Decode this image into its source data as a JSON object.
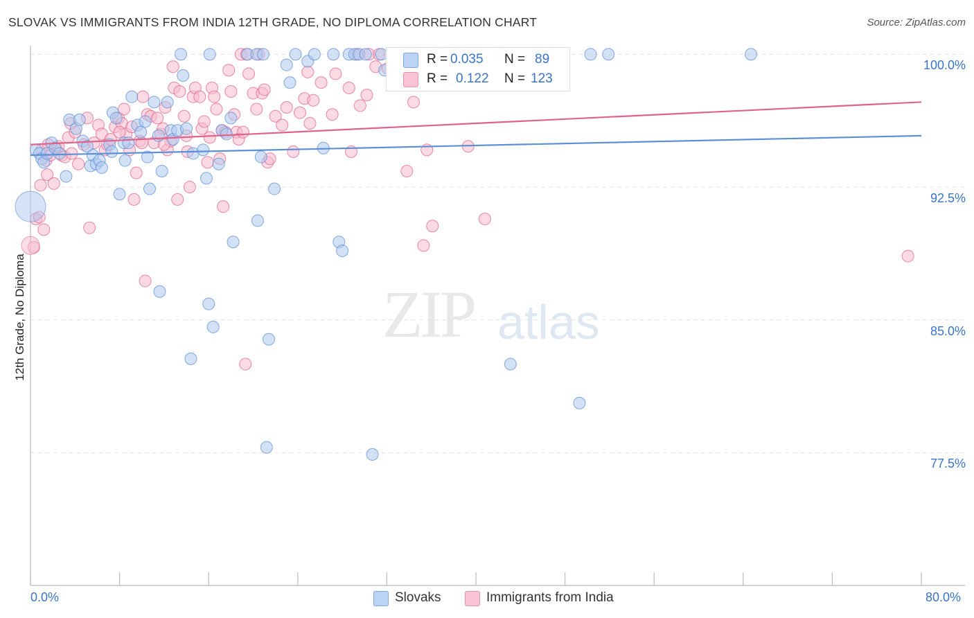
{
  "header": {
    "title": "SLOVAK VS IMMIGRANTS FROM INDIA 12TH GRADE, NO DIPLOMA CORRELATION CHART",
    "source": "Source: ZipAtlas.com"
  },
  "watermark": {
    "zip": "ZIP",
    "atlas": "atlas"
  },
  "legend": {
    "rows": [
      {
        "r_label": "R =",
        "r_value": "0.035",
        "n_label": "N =",
        "n_value": "89",
        "color": "#9fbfea"
      },
      {
        "r_label": "R =",
        "r_value": "0.122",
        "n_label": "N =",
        "n_value": "123",
        "color": "#f4a9c0"
      }
    ]
  },
  "bottom_legend": [
    {
      "label": "Slovaks",
      "color": "#aec8ee"
    },
    {
      "label": "Immigrants from India",
      "color": "#f7bccd"
    }
  ],
  "chart_data": {
    "type": "scatter",
    "title": "SLOVAK VS IMMIGRANTS FROM INDIA 12TH GRADE, NO DIPLOMA CORRELATION CHART",
    "xlabel": "",
    "ylabel": "12th Grade, No Diploma",
    "xlim": [
      0,
      80
    ],
    "ylim": [
      70,
      100.6
    ],
    "x_tick_labels": [
      "0.0%",
      "80.0%"
    ],
    "y_ticks": [
      100,
      92.5,
      85,
      77.5
    ],
    "y_tick_labels": [
      "100.0%",
      "92.5%",
      "85.0%",
      "77.5%"
    ],
    "grid": true,
    "series": [
      {
        "name": "Slovaks",
        "color": "#5b8fd6",
        "fill": "#aec8ee",
        "r": 0.035,
        "n": 89,
        "trend": [
          [
            0,
            94.3
          ],
          [
            80,
            95.4
          ]
        ],
        "points": [
          [
            0.5,
            94.6
          ],
          [
            0.8,
            94.4
          ],
          [
            1.0,
            94.1
          ],
          [
            1.2,
            93.9
          ],
          [
            1.5,
            94.4
          ],
          [
            1.9,
            95.0
          ],
          [
            2.2,
            94.7
          ],
          [
            2.6,
            94.4
          ],
          [
            3.2,
            93.1
          ],
          [
            3.5,
            96.3
          ],
          [
            4.1,
            95.8
          ],
          [
            4.4,
            96.3
          ],
          [
            4.7,
            95.1
          ],
          [
            5.1,
            94.8
          ],
          [
            5.4,
            93.7
          ],
          [
            5.6,
            94.3
          ],
          [
            5.9,
            93.8
          ],
          [
            6.2,
            94.0
          ],
          [
            6.4,
            93.6
          ],
          [
            7.1,
            94.9
          ],
          [
            7.3,
            94.5
          ],
          [
            7.4,
            96.7
          ],
          [
            7.7,
            96.4
          ],
          [
            8.0,
            92.1
          ],
          [
            8.4,
            95.0
          ],
          [
            8.5,
            94.0
          ],
          [
            8.8,
            95.0
          ],
          [
            9.1,
            97.6
          ],
          [
            9.6,
            96.0
          ],
          [
            9.9,
            95.6
          ],
          [
            10.3,
            96.2
          ],
          [
            10.5,
            94.2
          ],
          [
            10.7,
            92.4
          ],
          [
            11.1,
            97.3
          ],
          [
            11.5,
            95.4
          ],
          [
            11.8,
            93.4
          ],
          [
            12.3,
            97.3
          ],
          [
            12.6,
            95.7
          ],
          [
            12.8,
            95.2
          ],
          [
            13.2,
            95.7
          ],
          [
            13.5,
            100.0
          ],
          [
            13.7,
            98.8
          ],
          [
            14.0,
            95.8
          ],
          [
            14.6,
            94.4
          ],
          [
            15.5,
            94.6
          ],
          [
            15.8,
            93.0
          ],
          [
            16.1,
            100.0
          ],
          [
            16.4,
            84.6
          ],
          [
            16.9,
            93.8
          ],
          [
            17.2,
            95.7
          ],
          [
            17.6,
            95.5
          ],
          [
            18.0,
            96.4
          ],
          [
            18.2,
            89.4
          ],
          [
            19.5,
            100.0
          ],
          [
            20.3,
            100.0
          ],
          [
            20.7,
            94.2
          ],
          [
            20.4,
            90.6
          ],
          [
            20.9,
            100.0
          ],
          [
            21.2,
            77.8
          ],
          [
            21.4,
            83.9
          ],
          [
            21.9,
            92.4
          ],
          [
            23.0,
            99.4
          ],
          [
            23.3,
            98.4
          ],
          [
            23.8,
            100.0
          ],
          [
            24.9,
            99.6
          ],
          [
            25.5,
            100.0
          ],
          [
            26.3,
            94.7
          ],
          [
            27.2,
            100.0
          ],
          [
            27.7,
            89.4
          ],
          [
            28.0,
            88.9
          ],
          [
            28.6,
            100.0
          ],
          [
            29.1,
            100.0
          ],
          [
            29.5,
            100.0
          ],
          [
            30.1,
            100.0
          ],
          [
            30.7,
            77.4
          ],
          [
            31.5,
            100.0
          ],
          [
            31.8,
            99.1
          ],
          [
            33.8,
            100.0
          ],
          [
            37.8,
            98.6
          ],
          [
            38.3,
            100.0
          ],
          [
            38.5,
            100.0
          ],
          [
            42.3,
            100.0
          ],
          [
            43.1,
            82.5
          ],
          [
            49.3,
            80.3
          ],
          [
            50.3,
            100.0
          ],
          [
            51.9,
            100.0
          ],
          [
            64.7,
            100.0
          ],
          [
            16.0,
            85.9
          ],
          [
            14.4,
            82.8
          ],
          [
            11.6,
            86.6
          ]
        ],
        "big_point": [
          0,
          91.4
        ]
      },
      {
        "name": "Immigrants from India",
        "color": "#e0628b",
        "fill": "#f7bccd",
        "r": 0.122,
        "n": 123,
        "trend": [
          [
            0,
            94.9
          ],
          [
            80,
            97.3
          ]
        ],
        "points": [
          [
            0.3,
            89.1
          ],
          [
            0.5,
            90.7
          ],
          [
            0.9,
            92.6
          ],
          [
            1.0,
            94.6
          ],
          [
            1.2,
            90.1
          ],
          [
            1.4,
            94.0
          ],
          [
            1.5,
            93.2
          ],
          [
            1.8,
            94.3
          ],
          [
            2.1,
            92.7
          ],
          [
            2.3,
            94.7
          ],
          [
            2.8,
            94.3
          ],
          [
            3.1,
            94.2
          ],
          [
            3.4,
            95.3
          ],
          [
            3.7,
            94.4
          ],
          [
            4.0,
            95.6
          ],
          [
            4.3,
            93.8
          ],
          [
            4.8,
            94.9
          ],
          [
            5.1,
            96.4
          ],
          [
            5.3,
            90.2
          ],
          [
            5.7,
            95.0
          ],
          [
            6.1,
            96.0
          ],
          [
            6.4,
            95.5
          ],
          [
            6.7,
            94.6
          ],
          [
            6.9,
            94.9
          ],
          [
            7.2,
            95.2
          ],
          [
            7.6,
            95.9
          ],
          [
            7.9,
            96.4
          ],
          [
            8.2,
            96.1
          ],
          [
            8.4,
            96.9
          ],
          [
            8.6,
            95.5
          ],
          [
            8.9,
            94.6
          ],
          [
            9.1,
            95.9
          ],
          [
            9.3,
            91.8
          ],
          [
            9.5,
            93.3
          ],
          [
            9.8,
            95.1
          ],
          [
            10.0,
            95.0
          ],
          [
            10.1,
            97.6
          ],
          [
            10.3,
            87.2
          ],
          [
            10.5,
            96.6
          ],
          [
            10.8,
            96.5
          ],
          [
            11.1,
            95.0
          ],
          [
            11.4,
            96.4
          ],
          [
            11.7,
            95.5
          ],
          [
            11.9,
            95.8
          ],
          [
            12.1,
            97.0
          ],
          [
            12.3,
            94.6
          ],
          [
            12.6,
            95.1
          ],
          [
            12.8,
            99.3
          ],
          [
            12.9,
            98.1
          ],
          [
            13.2,
            91.8
          ],
          [
            13.4,
            97.9
          ],
          [
            13.8,
            96.5
          ],
          [
            14.0,
            95.4
          ],
          [
            14.1,
            94.5
          ],
          [
            14.3,
            92.5
          ],
          [
            14.6,
            97.6
          ],
          [
            14.8,
            98.1
          ],
          [
            15.2,
            97.6
          ],
          [
            15.4,
            95.8
          ],
          [
            15.6,
            96.2
          ],
          [
            15.9,
            93.9
          ],
          [
            16.1,
            95.3
          ],
          [
            16.3,
            98.1
          ],
          [
            16.5,
            97.6
          ],
          [
            16.7,
            96.9
          ],
          [
            17.0,
            94.1
          ],
          [
            17.2,
            95.7
          ],
          [
            17.3,
            91.4
          ],
          [
            17.5,
            95.6
          ],
          [
            17.8,
            99.1
          ],
          [
            18.0,
            97.9
          ],
          [
            18.3,
            96.6
          ],
          [
            18.5,
            95.6
          ],
          [
            18.7,
            95.2
          ],
          [
            18.9,
            100.0
          ],
          [
            19.1,
            95.6
          ],
          [
            19.3,
            82.5
          ],
          [
            19.4,
            100.0
          ],
          [
            19.6,
            98.9
          ],
          [
            20.0,
            97.8
          ],
          [
            20.3,
            96.9
          ],
          [
            20.5,
            100.0
          ],
          [
            20.8,
            97.8
          ],
          [
            21.0,
            98.0
          ],
          [
            21.3,
            93.9
          ],
          [
            21.5,
            94.1
          ],
          [
            22.0,
            96.5
          ],
          [
            22.6,
            96.0
          ],
          [
            23.0,
            97.0
          ],
          [
            23.6,
            94.5
          ],
          [
            24.2,
            96.7
          ],
          [
            24.6,
            97.5
          ],
          [
            24.9,
            99.0
          ],
          [
            25.1,
            96.1
          ],
          [
            25.4,
            97.4
          ],
          [
            26.1,
            98.4
          ],
          [
            27.1,
            96.6
          ],
          [
            27.4,
            98.9
          ],
          [
            28.6,
            98.1
          ],
          [
            28.8,
            94.5
          ],
          [
            29.3,
            100.0
          ],
          [
            29.6,
            97.1
          ],
          [
            30.2,
            97.7
          ],
          [
            30.4,
            100.0
          ],
          [
            31.0,
            99.3
          ],
          [
            31.3,
            100.0
          ],
          [
            32.1,
            99.2
          ],
          [
            33.8,
            93.4
          ],
          [
            34.4,
            97.3
          ],
          [
            35.3,
            89.2
          ],
          [
            35.6,
            94.6
          ],
          [
            36.1,
            90.3
          ],
          [
            36.8,
            100.0
          ],
          [
            39.3,
            94.8
          ],
          [
            40.8,
            90.7
          ],
          [
            78.8,
            88.6
          ],
          [
            1.6,
            94.9
          ],
          [
            2.5,
            94.8
          ],
          [
            3.6,
            96.1
          ],
          [
            0.8,
            90.8
          ],
          [
            8.0,
            95.6
          ],
          [
            12.0,
            94.9
          ]
        ],
        "big_point": [
          0,
          89.2
        ]
      }
    ]
  }
}
